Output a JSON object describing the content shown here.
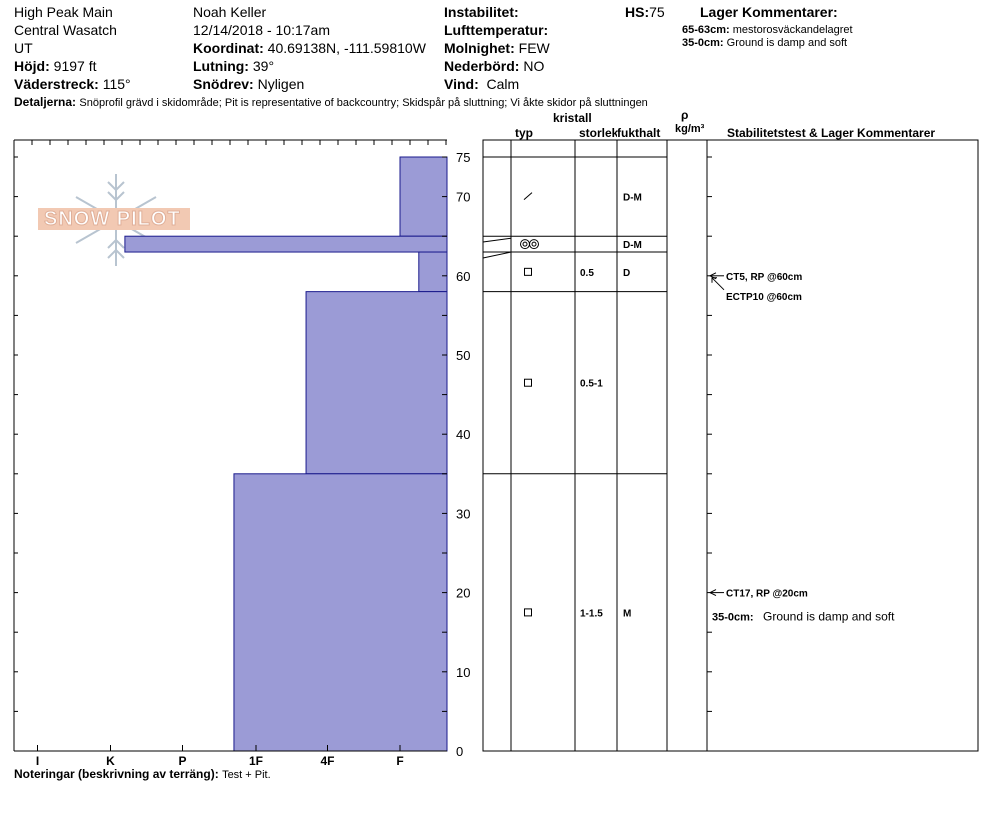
{
  "header": {
    "location": "High Peak Main",
    "range": "Central Wasatch",
    "state": "UT",
    "elevation_label": "Höjd:",
    "elevation_value": "9197 ft",
    "aspect_label": "Väderstreck:",
    "aspect_value": "115°",
    "observer": "Noah Keller",
    "datetime": "12/14/2018 - 10:17am",
    "coord_label": "Koordinat:",
    "coord_value": "40.69138N, -111.59810W",
    "slope_label": "Lutning:",
    "slope_value": "39°",
    "wind_loading_label": "Snödrev:",
    "wind_loading_value": "Nyligen",
    "instability_label": "Instabilitet:",
    "air_temp_label": "Lufttemperatur:",
    "sky_label": "Molnighet:",
    "sky_value": "FEW",
    "precip_label": "Nederbörd:",
    "precip_value": "NO",
    "wind_label": "Vind:",
    "wind_value": "Calm",
    "hs_label": "HS:",
    "hs_value": "75",
    "layer_comments_label": "Lager Kommentarer:",
    "layer_comment_1_depth": "65-63cm:",
    "layer_comment_1_text": "mestorosväckandelagret",
    "layer_comment_2_depth": "35-0cm:",
    "layer_comment_2_text": "Ground is damp and soft",
    "details_label": "Detaljerna:",
    "details_text": "Snöprofil grävd i skidområde;  Pit is representative of backcountry;  Skidspår på sluttning;  Vi åkte skidor på sluttningen"
  },
  "logo": {
    "text": "SNOW PILOT"
  },
  "columns": {
    "kristall": "kristall",
    "typ": "typ",
    "storlek": "storlek",
    "fukthalt": "fukthalt",
    "rho": "ρ",
    "density_unit": "kg/m³",
    "stability": "Stabilitetstest & Lager Kommentarer"
  },
  "chart_data": {
    "type": "bar",
    "orientation": "horizontal-step",
    "x_axis_labels": [
      "I",
      "K",
      "P",
      "1F",
      "4F",
      "F"
    ],
    "hardness_scale": {
      "I": 6,
      "K": 5,
      "P": 4,
      "1F": 3,
      "4F": 2,
      "F": 1
    },
    "y_ticks": [
      0,
      10,
      20,
      30,
      40,
      50,
      60,
      70,
      75
    ],
    "ylim": [
      0,
      75
    ],
    "fill_color": "#9b9bd6",
    "layers": [
      {
        "top": 75,
        "bottom": 65,
        "hardness": 1.0
      },
      {
        "top": 65,
        "bottom": 63,
        "hardness": 4.8
      },
      {
        "top": 63,
        "bottom": 58,
        "hardness": 0.6
      },
      {
        "top": 58,
        "bottom": 35,
        "hardness": 2.3
      },
      {
        "top": 35,
        "bottom": 0,
        "hardness": 3.3
      }
    ]
  },
  "layer_table": [
    {
      "top": 75,
      "bottom": 65,
      "typ": "slash",
      "size": "",
      "moisture": "D-M"
    },
    {
      "top": 65,
      "bottom": 63,
      "typ": "double-circle",
      "size": "",
      "moisture": "D-M"
    },
    {
      "top": 63,
      "bottom": 58,
      "typ": "square",
      "size": "0.5",
      "moisture": "D"
    },
    {
      "top": 58,
      "bottom": 35,
      "typ": "square",
      "size": "0.5-1",
      "moisture": ""
    },
    {
      "top": 35,
      "bottom": 0,
      "typ": "square",
      "size": "1-1.5",
      "moisture": "M"
    }
  ],
  "tests": [
    {
      "depth": 60,
      "text": "CT5, RP @60cm"
    },
    {
      "depth": 60,
      "text": "ECTP10 @60cm"
    },
    {
      "depth": 20,
      "text": "CT17, RP @20cm"
    }
  ],
  "table_comment": {
    "depth_label": "35-0cm:",
    "text": "Ground is damp and soft"
  },
  "notes": {
    "label": "Noteringar (beskrivning av terräng):",
    "text": "Test + Pit."
  }
}
